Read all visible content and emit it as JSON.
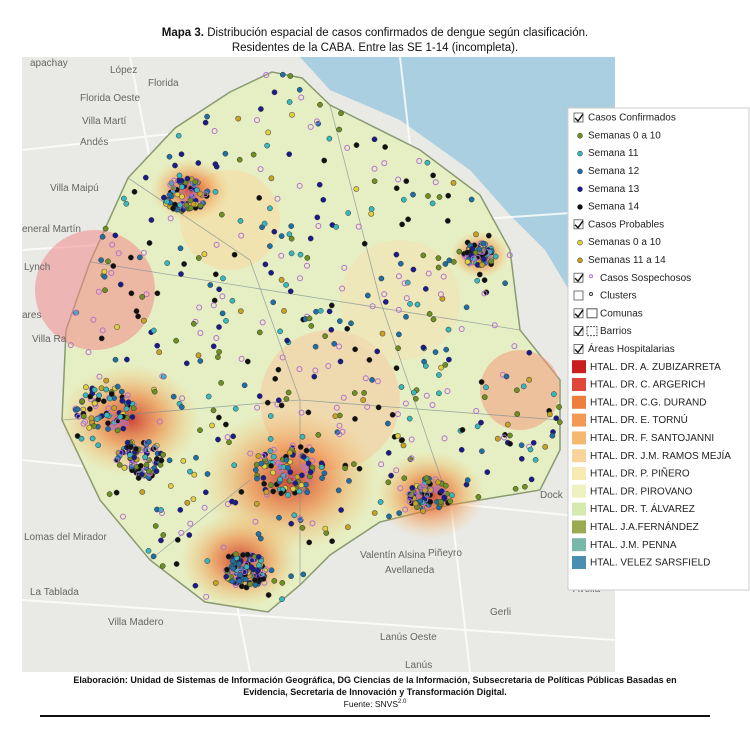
{
  "title": {
    "label": "Mapa 3.",
    "text": "Distribución espacial de casos confirmados de dengue según clasificación.",
    "line2": "Residentes de la CABA. Entre las SE 1-14 (incompleta)."
  },
  "map_labels": [
    "apachay",
    "López",
    "Florida",
    "Florida Oeste",
    "Villa Martí",
    "Andés",
    "Villa Maipú",
    "eneral Martín",
    "Lynch",
    "ares",
    "Villa Ra",
    "Lomas del Mirador",
    "La Tablada",
    "Villa Madero",
    "Valentín Alsina",
    "Avellaneda",
    "Piñeyro",
    "Lanús Oeste",
    "Lanús",
    "Gerli",
    "Dock",
    "Avella"
  ],
  "legend": {
    "confirmed": {
      "title": "Casos Confirmados",
      "checked": true,
      "items": [
        {
          "label": "Semanas 0 a 10",
          "color": "#6f8f22"
        },
        {
          "label": "Semana 11",
          "color": "#36b8bd"
        },
        {
          "label": "Semana 12",
          "color": "#1f6fa5"
        },
        {
          "label": "Semana 13",
          "color": "#1b1b8c"
        },
        {
          "label": "Semana 14",
          "color": "#111111"
        }
      ]
    },
    "probable": {
      "title": "Casos Probables",
      "checked": true,
      "items": [
        {
          "label": "Semanas 0 a 10",
          "color": "#e3cf3a"
        },
        {
          "label": "Semanas 11 a 14",
          "color": "#c9a21e"
        }
      ]
    },
    "layers": [
      {
        "label": "Casos Sospechosos",
        "checked": true,
        "color": "#b070d0"
      },
      {
        "label": "Clusters",
        "checked": false,
        "color": "#333333"
      },
      {
        "label": "Comunas",
        "checked": true
      },
      {
        "label": "Barrios",
        "checked": true
      }
    ],
    "hospitals": {
      "title": "Áreas Hospitalarias",
      "checked": true,
      "items": [
        {
          "label": "HTAL. DR. A. ZUBIZARRETA",
          "color": "#c81e1e"
        },
        {
          "label": "HTAL. DR. C. ARGERICH",
          "color": "#e0463a"
        },
        {
          "label": "HTAL. DR. C.G. DURAND",
          "color": "#ef7d3e"
        },
        {
          "label": "HTAL. DR. E. TORNÚ",
          "color": "#f29a55"
        },
        {
          "label": "HTAL. DR. F. SANTOJANNI",
          "color": "#f5b870"
        },
        {
          "label": "HTAL. DR. J.M. RAMOS MEJÍA",
          "color": "#f8d49a"
        },
        {
          "label": "HTAL. DR. P. PIÑERO",
          "color": "#f7e9b2"
        },
        {
          "label": "HTAL. DR. PIROVANO",
          "color": "#eef2c0"
        },
        {
          "label": "HTAL. DR. T. ÁLVAREZ",
          "color": "#d6e9ae"
        },
        {
          "label": "HTAL. J.A.FERNÁNDEZ",
          "color": "#9aaa50"
        },
        {
          "label": "HTAL. J.M. PENNA",
          "color": "#79b8a8"
        },
        {
          "label": "HTAL. VELEZ SARSFIELD",
          "color": "#4a8fb0"
        }
      ]
    }
  },
  "footer": {
    "line1": "Elaboración: Unidad de Sistemas de Información Geográfica, DG Ciencias de la Información, Subsecretaria de Políticas Públicas Basadas en",
    "line2": "Evidencia, Secretaria de Innovación y Transformación Digital.",
    "source": "Fuente: SNVS",
    "source_sup": "2.0"
  }
}
